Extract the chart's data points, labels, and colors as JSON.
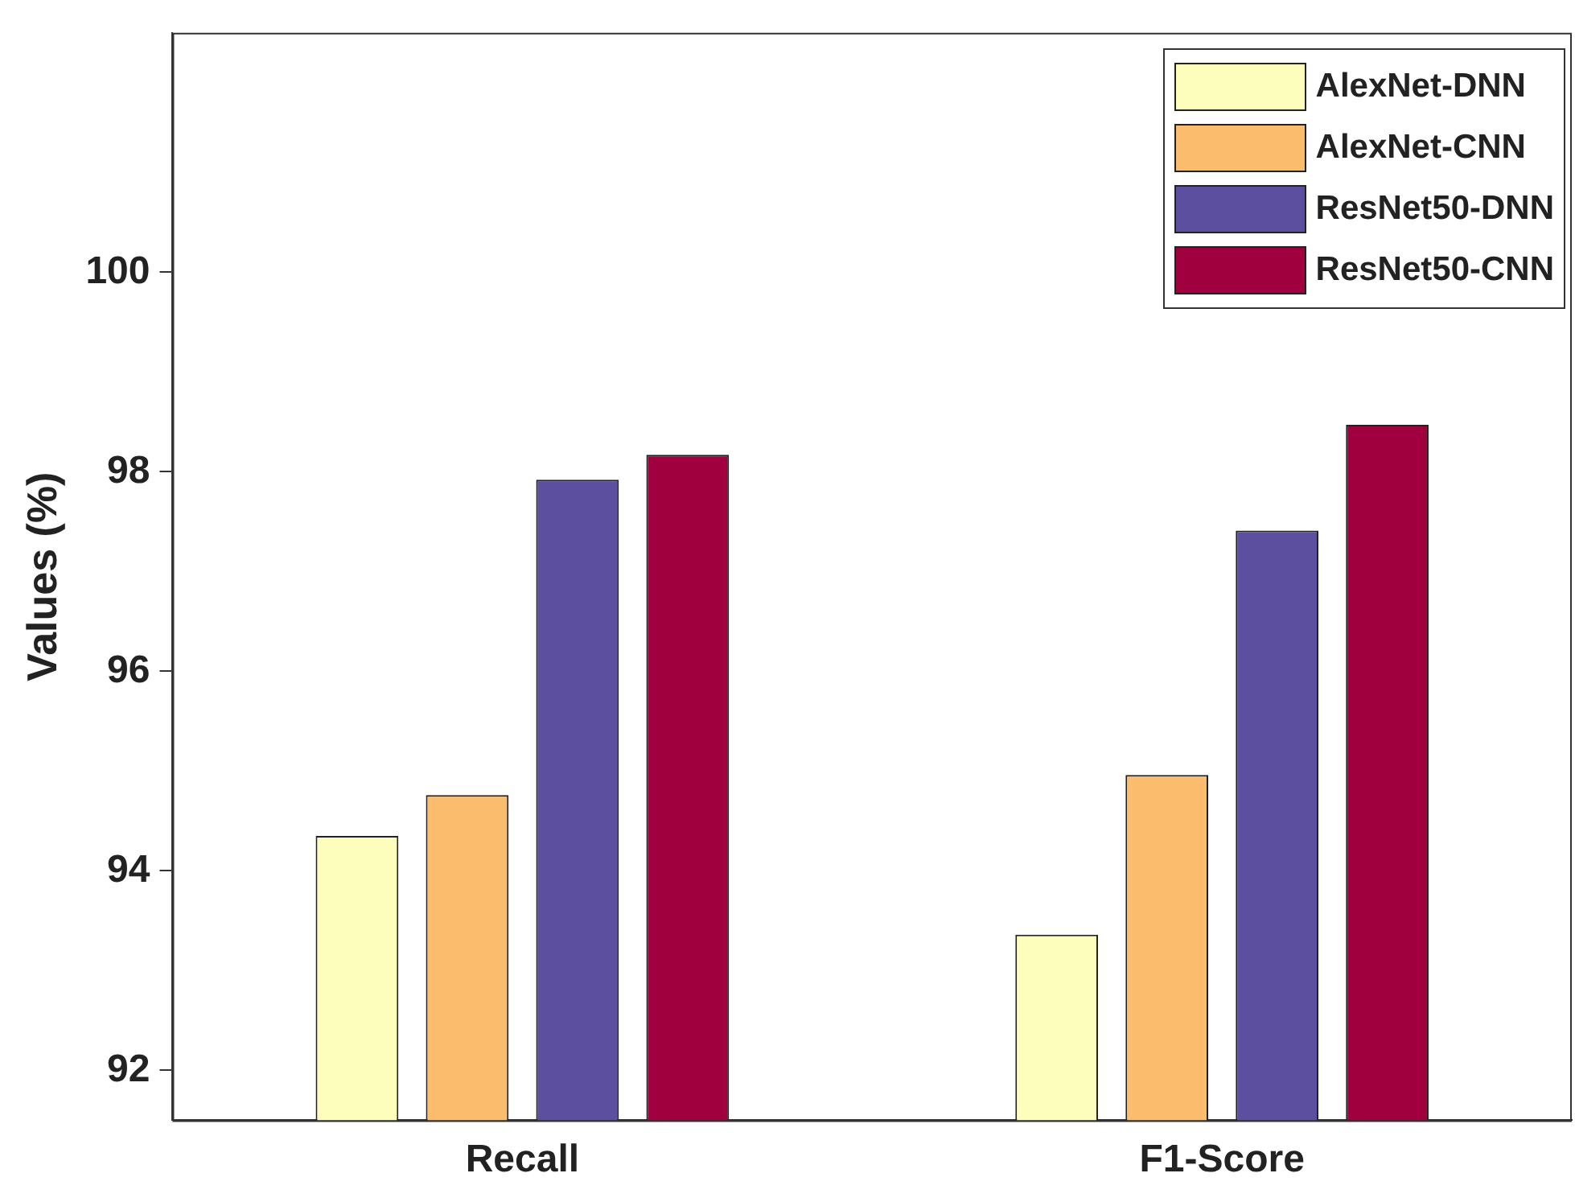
{
  "chart_data": {
    "type": "bar",
    "ylabel": "Values (%)",
    "categories": [
      "Recall",
      "F1-Score"
    ],
    "series": [
      {
        "name": "AlexNet-DNN",
        "color": "#fdfdbc",
        "values": [
          94.35,
          93.36
        ]
      },
      {
        "name": "AlexNet-CNN",
        "color": "#fbbd6d",
        "values": [
          94.76,
          94.96
        ]
      },
      {
        "name": "ResNet50-DNN",
        "color": "#5c4f9f",
        "values": [
          97.92,
          97.41
        ]
      },
      {
        "name": "ResNet50-CNN",
        "color": "#a1003e",
        "values": [
          98.17,
          98.47
        ]
      }
    ],
    "ylim": [
      91.5,
      102.4
    ],
    "yticks": [
      92,
      94,
      96,
      98,
      100
    ],
    "grid": false,
    "legend": "top right"
  }
}
